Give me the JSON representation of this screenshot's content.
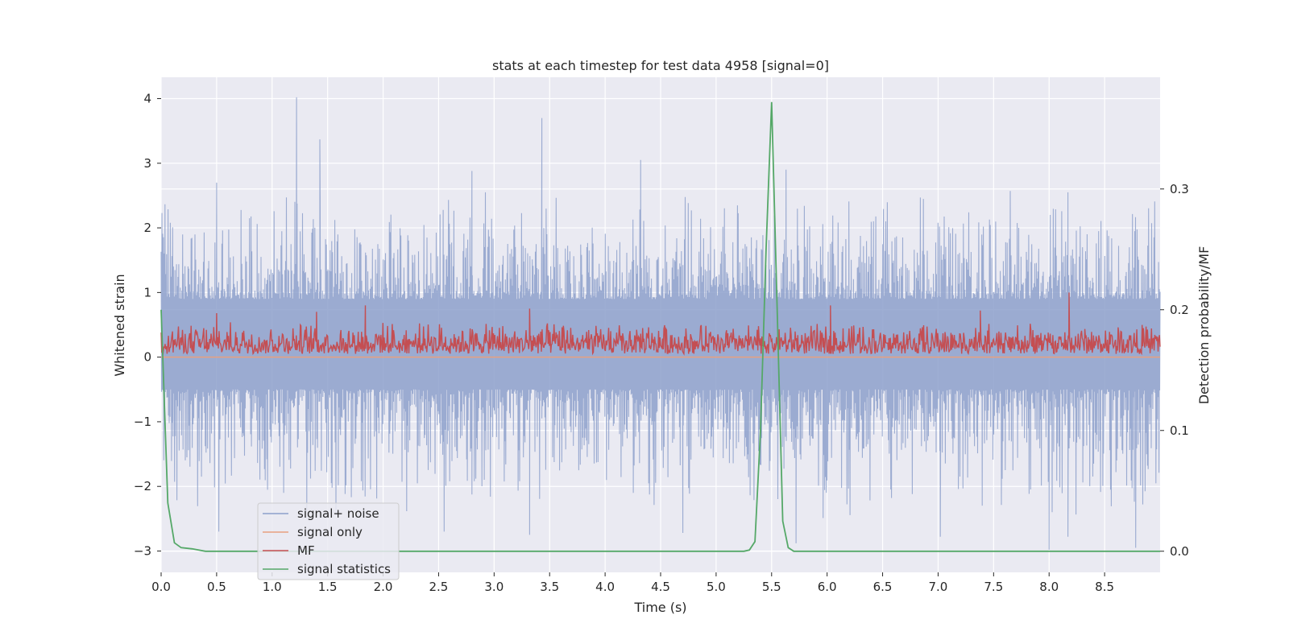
{
  "chart_data": {
    "type": "line",
    "title": "stats at each timestep for test data 4958 [signal=0]",
    "xlabel": "Time (s)",
    "ylabel": "Whitened strain",
    "y2label": "Detection probability/MF",
    "xlim": [
      0.0,
      9.0
    ],
    "ylim": [
      -3.33,
      4.33
    ],
    "y2lim": [
      -0.0175,
      0.3925
    ],
    "xticks": [
      0.0,
      0.5,
      1.0,
      1.5,
      2.0,
      2.5,
      3.0,
      3.5,
      4.0,
      4.5,
      5.0,
      5.5,
      6.0,
      6.5,
      7.0,
      7.5,
      8.0,
      8.5
    ],
    "xtick_labels": [
      "0.0",
      "0.5",
      "1.0",
      "1.5",
      "2.0",
      "2.5",
      "3.0",
      "3.5",
      "4.0",
      "4.5",
      "5.0",
      "5.5",
      "6.0",
      "6.5",
      "7.0",
      "7.5",
      "8.0",
      "8.5"
    ],
    "yticks": [
      -3,
      -2,
      -1,
      0,
      1,
      2,
      3,
      4
    ],
    "ytick_labels": [
      "−3",
      "−2",
      "−1",
      "0",
      "1",
      "2",
      "3",
      "4"
    ],
    "y2ticks": [
      0.0,
      0.1,
      0.2,
      0.3
    ],
    "y2tick_labels": [
      "0.0",
      "0.1",
      "0.2",
      "0.3"
    ],
    "grid": true,
    "legend_position": "lower-left",
    "colors": {
      "noise": "#8da0cb",
      "signal_only": "#e8a07f",
      "mf": "#c44e52",
      "stats": "#55a868"
    },
    "series": [
      {
        "name": "signal+ noise",
        "axis": "left",
        "description": "dense noisy whitened strain, roughly between -2.9 and 4.0",
        "noise_envelope": {
          "low": -2.6,
          "high": 2.6
        },
        "spikes": [
          {
            "x": 0.5,
            "y": 2.7
          },
          {
            "x": 1.22,
            "y": 4.02
          },
          {
            "x": 1.43,
            "y": 3.37
          },
          {
            "x": 2.8,
            "y": 2.88
          },
          {
            "x": 3.43,
            "y": 3.7
          },
          {
            "x": 4.32,
            "y": 3.05
          },
          {
            "x": 5.63,
            "y": 2.9
          },
          {
            "x": 8.17,
            "y": 2.55
          },
          {
            "x": 0.52,
            "y": -2.7
          },
          {
            "x": 2.55,
            "y": -2.7
          },
          {
            "x": 3.32,
            "y": -2.75
          },
          {
            "x": 4.7,
            "y": -2.72
          },
          {
            "x": 5.72,
            "y": -2.88
          },
          {
            "x": 7.02,
            "y": -2.78
          },
          {
            "x": 8.0,
            "y": -2.98
          },
          {
            "x": 8.17,
            "y": -2.78
          },
          {
            "x": 8.78,
            "y": -2.95
          }
        ]
      },
      {
        "name": "signal only",
        "axis": "left",
        "x": [
          0.0,
          9.0
        ],
        "values": [
          0.0,
          0.0
        ]
      },
      {
        "name": "MF",
        "axis": "left",
        "description": "matched-filter output, noisy band roughly between 0.0 and 0.6",
        "band": {
          "low": 0.0,
          "high": 0.55
        },
        "spikes": [
          {
            "x": 0.5,
            "y": 0.68
          },
          {
            "x": 1.4,
            "y": 0.7
          },
          {
            "x": 1.84,
            "y": 0.8
          },
          {
            "x": 3.32,
            "y": 0.75
          },
          {
            "x": 6.03,
            "y": 0.8
          },
          {
            "x": 7.38,
            "y": 0.72
          },
          {
            "x": 8.18,
            "y": 1.0
          }
        ]
      },
      {
        "name": "signal statistics",
        "axis": "right",
        "x": [
          0.0,
          0.06,
          0.12,
          0.18,
          0.28,
          0.4,
          0.6,
          1.0,
          2.0,
          3.0,
          4.0,
          5.0,
          5.25,
          5.3,
          5.35,
          5.4,
          5.45,
          5.5,
          5.55,
          5.6,
          5.65,
          5.7,
          5.78,
          6.0,
          7.0,
          8.0,
          9.0
        ],
        "values": [
          0.2,
          0.04,
          0.007,
          0.003,
          0.002,
          0.0,
          0.0,
          0.0,
          0.0,
          0.0,
          0.0,
          0.0,
          0.0,
          0.001,
          0.008,
          0.1,
          0.25,
          0.372,
          0.2,
          0.025,
          0.003,
          0.0,
          0.0,
          0.0,
          0.0,
          0.0,
          0.0
        ]
      }
    ]
  }
}
